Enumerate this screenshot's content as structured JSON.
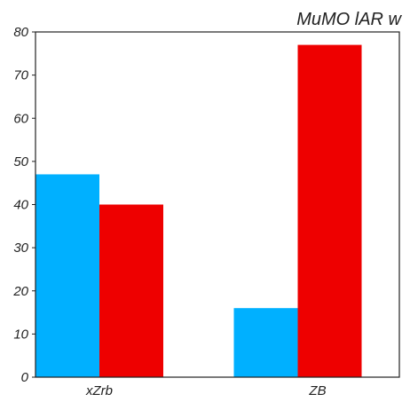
{
  "chart_data": {
    "type": "bar",
    "title": "MuMO lAR w",
    "xlabel": "",
    "ylabel": "",
    "categories": [
      "xZrb",
      "ZB"
    ],
    "series": [
      {
        "values": [
          47,
          16
        ],
        "color": "#00b0ff"
      },
      {
        "values": [
          40,
          77
        ],
        "color": "#ee0000"
      }
    ],
    "ylim": [
      0,
      80
    ],
    "yticks": [
      0,
      10,
      20,
      30,
      40,
      50,
      60,
      70,
      80
    ],
    "grid": false,
    "legend": "none"
  }
}
